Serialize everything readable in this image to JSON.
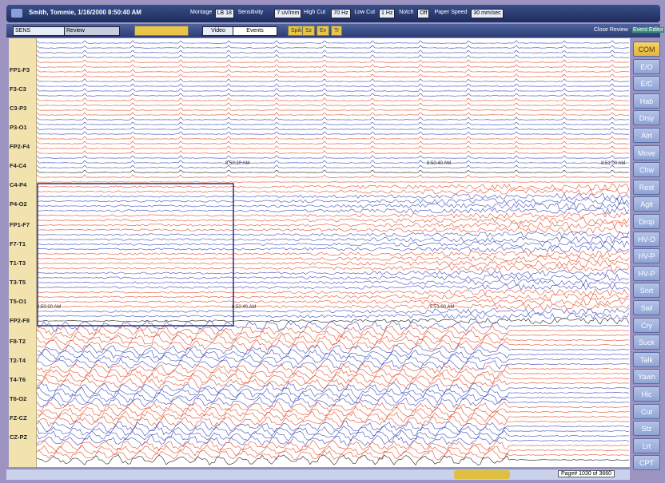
{
  "title_bar": {
    "title": "Smith, Tommie, 1/16/2000 8:50:40 AM",
    "controls": [
      "Montage",
      "Sensitivity",
      "High Cut",
      "Low Cut",
      "Notch",
      "Paper Speed"
    ],
    "values": [
      "LB 18",
      "7 uV/mm",
      "70 Hz",
      "1 Hz",
      "Off",
      "30 mm/sec"
    ]
  },
  "tool_bar": {
    "left": [
      "SENS",
      "Review"
    ],
    "tabs": [
      "Video",
      "Events"
    ],
    "markers": [
      "Spikes",
      "Sz",
      "Ev",
      "Tr"
    ],
    "right": [
      "Close Review",
      "Event Editor"
    ]
  },
  "channels": [
    "FP1-F3",
    "F3-C3",
    "C3-P3",
    "P3-O1",
    "FP2-F4",
    "F4-C4",
    "C4-P4",
    "P4-O2",
    "FP1-F7",
    "F7-T1",
    "T1-T3",
    "T3-T5",
    "T5-O1",
    "FP2-F8",
    "F8-T2",
    "T2-T4",
    "T4-T6",
    "T6-O2",
    "FZ-CZ",
    "CZ-PZ"
  ],
  "event_buttons": [
    "COM",
    "E/O",
    "E/C",
    "Hab",
    "Drsy",
    "Alrt",
    "Move",
    "Chw",
    "Rest",
    "Agit",
    "Drop",
    "HV-O",
    "HV-P",
    "HV-P",
    "Snrt",
    "Swl",
    "Cry",
    "Suck",
    "Talk",
    "Yawn",
    "Hic",
    "Cut",
    "Stz",
    "Lrt",
    "CPT"
  ],
  "plot": {
    "timestamps": [
      "8:50:20 AM",
      "8:50:40 AM",
      "8:51:00 AM",
      "8:50:20 AM",
      "8:50:40 AM",
      "8:51:00 AM"
    ]
  },
  "status_bar": {
    "page": "Page# 1030 of 3660"
  }
}
